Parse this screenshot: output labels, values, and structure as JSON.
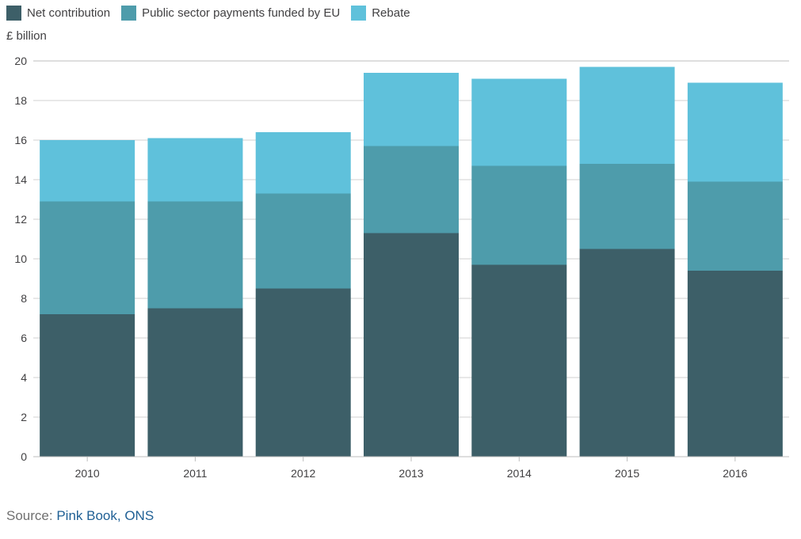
{
  "legend": {
    "items": [
      {
        "label": "Net contribution",
        "color": "#3d5f68"
      },
      {
        "label": "Public sector payments funded by EU",
        "color": "#4e9cab"
      },
      {
        "label": "Rebate",
        "color": "#5fc1db"
      }
    ]
  },
  "source": {
    "prefix": "Source:",
    "link_text": "Pink Book, ONS"
  },
  "chart_data": {
    "type": "bar",
    "stacked": true,
    "title": "",
    "xlabel": "",
    "ylabel": "£ billion",
    "ylim": [
      0,
      20
    ],
    "yticks": [
      0,
      2,
      4,
      6,
      8,
      10,
      12,
      14,
      16,
      18,
      20
    ],
    "categories": [
      "2010",
      "2011",
      "2012",
      "2013",
      "2014",
      "2015",
      "2016"
    ],
    "grid": true,
    "legend_position": "top-left",
    "series": [
      {
        "name": "Net contribution",
        "color": "#3d5f68",
        "values": [
          7.2,
          7.5,
          8.5,
          11.3,
          9.7,
          10.5,
          9.4
        ]
      },
      {
        "name": "Public sector payments funded by EU",
        "color": "#4e9cab",
        "values": [
          5.7,
          5.4,
          4.8,
          4.4,
          5.0,
          4.3,
          4.5
        ]
      },
      {
        "name": "Rebate",
        "color": "#5fc1db",
        "values": [
          3.1,
          3.2,
          3.1,
          3.7,
          4.4,
          4.9,
          5.0
        ]
      }
    ]
  }
}
